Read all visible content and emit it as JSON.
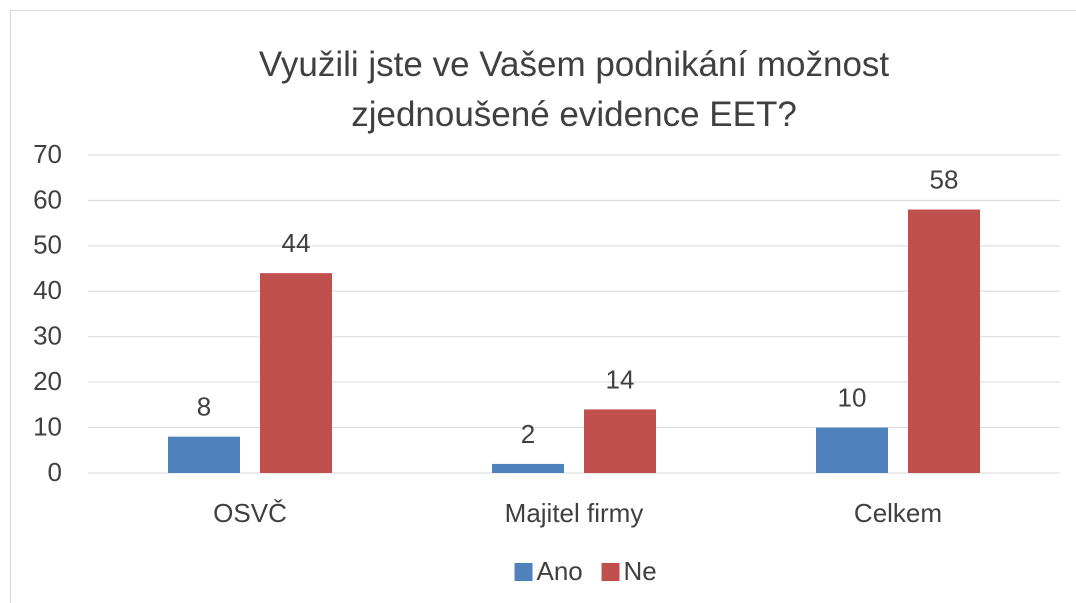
{
  "chart_data": {
    "type": "bar",
    "title": "Využili jste ve Vašem podnikání možnost\nzjednoušené evidence EET?",
    "categories": [
      "OSVČ",
      "Majitel firmy",
      "Celkem"
    ],
    "series": [
      {
        "name": "Ano",
        "color": "#4f81bd",
        "values": [
          8,
          2,
          10
        ]
      },
      {
        "name": "Ne",
        "color": "#c0504d",
        "values": [
          44,
          14,
          58
        ]
      }
    ],
    "ylim": [
      0,
      70
    ],
    "yticks": [
      0,
      10,
      20,
      30,
      40,
      50,
      60,
      70
    ],
    "grid": true,
    "legend": "bottom"
  }
}
